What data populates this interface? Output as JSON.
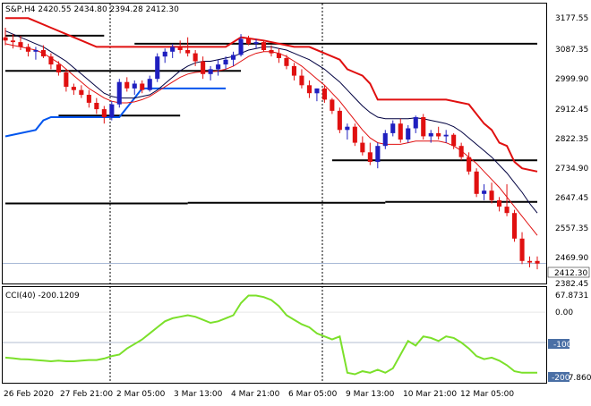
{
  "window": {
    "symbol_line": "S&P,H4  2420.55 2434.80 2394.28 2412.30",
    "cci_label": "CCI(40) -200.1209"
  },
  "colors": {
    "bull": "#1f1fbf",
    "bear": "#e01010",
    "ma_dark": "#000040",
    "ma_red": "#e01010",
    "ma_blue": "#0055ee",
    "cci": "#7be02a",
    "levels": "#000000",
    "grid": "#000000",
    "price_tag": "#ffffff"
  },
  "price_axis": {
    "labels": [
      "3177.55",
      "3087.35",
      "2999.90",
      "2912.45",
      "2822.35",
      "2734.90",
      "2647.45",
      "2557.35",
      "2469.90",
      "2382.45"
    ],
    "current_price_tag": "2412.30"
  },
  "cci_axis": {
    "labels": [
      "67.8731",
      "0.00",
      "-100",
      "-217.8605"
    ],
    "level_tag": "-100",
    "current_tag": "-200"
  },
  "time_axis": {
    "labels": [
      "26 Feb 2020",
      "27 Feb 21:00",
      "2 Mar 05:00",
      "3 Mar 13:00",
      "4 Mar 21:00",
      "6 Mar 05:00",
      "9 Mar 13:00",
      "10 Mar 21:00",
      "12 Mar 05:00"
    ]
  },
  "chart_data": {
    "type": "candlestick",
    "symbol": "S&P",
    "timeframe": "H4",
    "last_bar": {
      "open": 2420.55,
      "high": 2434.8,
      "low": 2394.28,
      "close": 2412.3
    },
    "ylim": [
      2355,
      3220
    ],
    "candles": [
      [
        3120,
        3150,
        3095,
        3110
      ],
      [
        3110,
        3130,
        3085,
        3105
      ],
      [
        3105,
        3125,
        3080,
        3090
      ],
      [
        3090,
        3100,
        3060,
        3075
      ],
      [
        3075,
        3090,
        3050,
        3080
      ],
      [
        3080,
        3095,
        3055,
        3060
      ],
      [
        3060,
        3070,
        3020,
        3035
      ],
      [
        3035,
        3045,
        3000,
        3010
      ],
      [
        3010,
        3020,
        2950,
        2965
      ],
      [
        2965,
        2975,
        2940,
        2955
      ],
      [
        2955,
        2970,
        2930,
        2940
      ],
      [
        2940,
        2955,
        2900,
        2915
      ],
      [
        2915,
        2930,
        2880,
        2895
      ],
      [
        2895,
        2905,
        2850,
        2870
      ],
      [
        2870,
        2920,
        2860,
        2910
      ],
      [
        2910,
        2990,
        2900,
        2980
      ],
      [
        2980,
        2995,
        2950,
        2960
      ],
      [
        2960,
        2985,
        2940,
        2975
      ],
      [
        2975,
        2985,
        2945,
        2955
      ],
      [
        2955,
        3000,
        2950,
        2990
      ],
      [
        2990,
        3070,
        2980,
        3060
      ],
      [
        3060,
        3085,
        3040,
        3075
      ],
      [
        3075,
        3100,
        3055,
        3090
      ],
      [
        3090,
        3110,
        3070,
        3080
      ],
      [
        3080,
        3120,
        3060,
        3070
      ],
      [
        3070,
        3080,
        3030,
        3045
      ],
      [
        3045,
        3060,
        2990,
        3005
      ],
      [
        3005,
        3030,
        2985,
        3020
      ],
      [
        3020,
        3050,
        3000,
        3035
      ],
      [
        3035,
        3060,
        3020,
        3050
      ],
      [
        3050,
        3075,
        3030,
        3065
      ],
      [
        3065,
        3130,
        3060,
        3115
      ],
      [
        3115,
        3125,
        3095,
        3100
      ],
      [
        3100,
        3115,
        3085,
        3105
      ],
      [
        3105,
        3110,
        3075,
        3080
      ],
      [
        3080,
        3095,
        3060,
        3070
      ],
      [
        3070,
        3085,
        3040,
        3055
      ],
      [
        3055,
        3065,
        3020,
        3030
      ],
      [
        3030,
        3040,
        2985,
        3000
      ],
      [
        3000,
        3020,
        2960,
        2970
      ],
      [
        2970,
        2985,
        2930,
        2945
      ],
      [
        2945,
        2960,
        2920,
        2960
      ],
      [
        2960,
        2970,
        2915,
        2925
      ],
      [
        2925,
        2930,
        2880,
        2890
      ],
      [
        2890,
        2900,
        2820,
        2830
      ],
      [
        2830,
        2850,
        2800,
        2840
      ],
      [
        2840,
        2850,
        2780,
        2790
      ],
      [
        2790,
        2810,
        2750,
        2760
      ],
      [
        2760,
        2790,
        2720,
        2730
      ],
      [
        2730,
        2790,
        2710,
        2780
      ],
      [
        2780,
        2830,
        2770,
        2820
      ],
      [
        2820,
        2860,
        2810,
        2850
      ],
      [
        2850,
        2865,
        2790,
        2800
      ],
      [
        2800,
        2845,
        2790,
        2835
      ],
      [
        2835,
        2875,
        2820,
        2870
      ],
      [
        2870,
        2880,
        2800,
        2810
      ],
      [
        2810,
        2830,
        2790,
        2820
      ],
      [
        2820,
        2840,
        2800,
        2810
      ],
      [
        2810,
        2830,
        2790,
        2815
      ],
      [
        2815,
        2820,
        2770,
        2780
      ],
      [
        2780,
        2790,
        2735,
        2745
      ],
      [
        2745,
        2760,
        2690,
        2700
      ],
      [
        2700,
        2710,
        2620,
        2630
      ],
      [
        2630,
        2660,
        2610,
        2640
      ],
      [
        2640,
        2665,
        2600,
        2610
      ],
      [
        2610,
        2620,
        2575,
        2590
      ],
      [
        2590,
        2660,
        2560,
        2570
      ],
      [
        2570,
        2580,
        2480,
        2490
      ],
      [
        2490,
        2510,
        2410,
        2420
      ],
      [
        2420,
        2434,
        2400,
        2415
      ],
      [
        2420,
        2434,
        2394,
        2412
      ]
    ],
    "ma_dark": [
      3140,
      3130,
      3120,
      3110,
      3100,
      3090,
      3075,
      3060,
      3045,
      3025,
      3005,
      2985,
      2965,
      2945,
      2935,
      2930,
      2930,
      2930,
      2935,
      2940,
      2955,
      2975,
      2995,
      3015,
      3030,
      3040,
      3045,
      3045,
      3050,
      3055,
      3060,
      3070,
      3080,
      3085,
      3090,
      3090,
      3085,
      3080,
      3070,
      3060,
      3050,
      3035,
      3020,
      3000,
      2980,
      2955,
      2930,
      2905,
      2885,
      2870,
      2865,
      2865,
      2865,
      2865,
      2868,
      2865,
      2860,
      2855,
      2850,
      2840,
      2825,
      2805,
      2785,
      2765,
      2745,
      2720,
      2695,
      2665,
      2635,
      2600,
      2570
    ],
    "ma_red": [
      3100,
      3095,
      3090,
      3085,
      3080,
      3070,
      3055,
      3040,
      3020,
      3000,
      2980,
      2960,
      2945,
      2930,
      2920,
      2915,
      2915,
      2918,
      2925,
      2935,
      2950,
      2965,
      2980,
      2995,
      3005,
      3010,
      3012,
      3012,
      3015,
      3020,
      3030,
      3045,
      3060,
      3070,
      3075,
      3075,
      3070,
      3060,
      3045,
      3030,
      3010,
      2990,
      2970,
      2945,
      2920,
      2890,
      2860,
      2830,
      2805,
      2790,
      2785,
      2785,
      2785,
      2790,
      2795,
      2795,
      2795,
      2795,
      2790,
      2780,
      2765,
      2745,
      2725,
      2700,
      2675,
      2650,
      2620,
      2590,
      2560,
      2530,
      2500
    ],
    "resistance_red": [
      [
        0,
        3180
      ],
      [
        3,
        3180
      ],
      [
        6,
        3150
      ],
      [
        9,
        3120
      ],
      [
        12,
        3090
      ],
      [
        13,
        3090
      ],
      [
        19,
        3090
      ],
      [
        20,
        3090
      ],
      [
        29,
        3090
      ],
      [
        31,
        3120
      ],
      [
        34,
        3110
      ],
      [
        38,
        3090
      ],
      [
        40,
        3090
      ],
      [
        44,
        3050
      ],
      [
        45,
        3020
      ],
      [
        46,
        3010
      ],
      [
        47,
        3000
      ],
      [
        48,
        2975
      ],
      [
        49,
        2925
      ],
      [
        58,
        2925
      ],
      [
        61,
        2910
      ],
      [
        62,
        2880
      ],
      [
        63,
        2850
      ],
      [
        64,
        2830
      ],
      [
        65,
        2790
      ],
      [
        66,
        2780
      ],
      [
        67,
        2730
      ],
      [
        68,
        2710
      ],
      [
        70,
        2700
      ]
    ],
    "support_blue": [
      [
        0,
        2810
      ],
      [
        4,
        2830
      ],
      [
        5,
        2860
      ],
      [
        6,
        2870
      ],
      [
        15,
        2870
      ],
      [
        17,
        2930
      ],
      [
        18,
        2960
      ],
      [
        29,
        2960
      ]
    ],
    "levels": [
      {
        "y": 3125,
        "x0": 0,
        "x1": 13
      },
      {
        "y": 3100,
        "x0": 17,
        "x1": 70
      },
      {
        "y": 3015,
        "x0": 0,
        "x1": 31
      },
      {
        "y": 2875,
        "x0": 7,
        "x1": 23
      },
      {
        "y": 2735,
        "x0": 43,
        "x1": 70
      },
      {
        "y": 2600,
        "x0": 0,
        "x1": 24
      },
      {
        "y": 2602,
        "x0": 24,
        "x1": 50
      },
      {
        "y": 2605,
        "x0": 50,
        "x1": 70
      }
    ],
    "cci": {
      "ylim": [
        -230,
        80
      ],
      "values": [
        -150,
        -152,
        -155,
        -156,
        -158,
        -160,
        -162,
        -160,
        -162,
        -162,
        -160,
        -158,
        -158,
        -153,
        -145,
        -140,
        -120,
        -105,
        -90,
        -70,
        -50,
        -30,
        -20,
        -15,
        -10,
        -15,
        -25,
        -35,
        -30,
        -20,
        -10,
        30,
        55,
        55,
        50,
        40,
        20,
        -10,
        -25,
        -40,
        -50,
        -70,
        -80,
        -90,
        -80,
        -200,
        -205,
        -195,
        -200,
        -190,
        -200,
        -185,
        -140,
        -95,
        -110,
        -80,
        -85,
        -95,
        -80,
        -85,
        -100,
        -120,
        -145,
        -155,
        -150,
        -160,
        -175,
        -195,
        -200,
        -200,
        -200
      ],
      "levels": [
        -100
      ]
    }
  }
}
